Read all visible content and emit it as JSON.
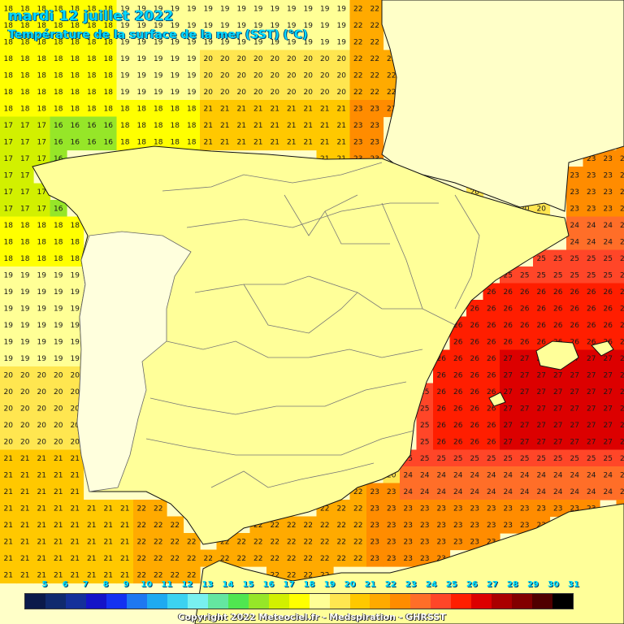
{
  "title": "mardi 12 juillet 2022",
  "subtitle": "Température de la surface de la mer (SST) (°C)",
  "copyright": "Copyright 2022 Meteociel.fr - Medspiration - GHRSST",
  "colors": {
    "land": "#ffff99",
    "portugal": "#ffffdd",
    "outer_land": "#ffffc8"
  },
  "legend": {
    "labels": [
      "5",
      "6",
      "7",
      "8",
      "9",
      "10",
      "11",
      "12",
      "13",
      "14",
      "15",
      "16",
      "17",
      "18",
      "19",
      "20",
      "21",
      "22",
      "23",
      "24",
      "25",
      "26",
      "27",
      "28",
      "29",
      "30",
      "31"
    ],
    "colors": [
      "#0b1a4a",
      "#102a6e",
      "#14309a",
      "#1414c8",
      "#1432f0",
      "#1e78f0",
      "#1eaaf0",
      "#3cd2f0",
      "#78f0f0",
      "#64e6a0",
      "#50e650",
      "#96e628",
      "#d2f000",
      "#ffff00",
      "#ffff96",
      "#ffe650",
      "#ffc800",
      "#ffaa00",
      "#ff8c00",
      "#ff6e28",
      "#ff4628",
      "#ff1e00",
      "#dc0000",
      "#aa0000",
      "#820000",
      "#500000",
      "#000000"
    ]
  },
  "zones": [
    {
      "name": "bay-of-biscay",
      "values": [
        18,
        19,
        20,
        21,
        22,
        23,
        24
      ]
    },
    {
      "name": "atlantic-galicia",
      "values": [
        16,
        17,
        18
      ]
    },
    {
      "name": "atlantic-portugal",
      "values": [
        19,
        20,
        21
      ]
    },
    {
      "name": "alboran-sea",
      "values": [
        21,
        22,
        23,
        24
      ]
    },
    {
      "name": "balearic-sea",
      "values": [
        24,
        25,
        26,
        27
      ]
    }
  ]
}
